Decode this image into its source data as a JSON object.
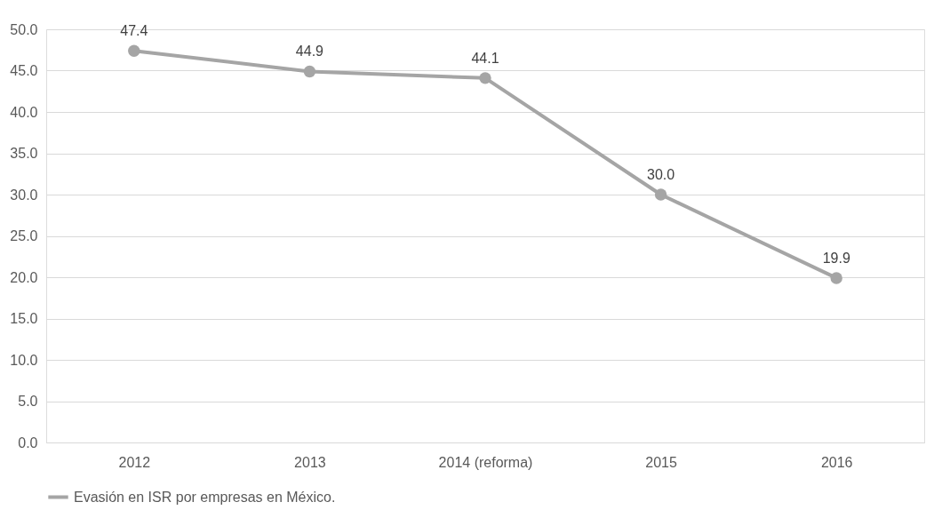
{
  "chart_data": {
    "type": "line",
    "categories": [
      "2012",
      "2013",
      "2014 (reforma)",
      "2015",
      "2016"
    ],
    "series": [
      {
        "name": "Evasión en ISR por empresas en México.",
        "color": "#a5a5a5",
        "values": [
          47.4,
          44.9,
          44.1,
          30.0,
          19.9
        ],
        "value_labels": [
          "47.4",
          "44.9",
          "44.1",
          "30.0",
          "19.9"
        ]
      }
    ],
    "ylim": [
      0,
      50
    ],
    "yticks": [
      {
        "value": 0,
        "label": "0.0"
      },
      {
        "value": 5,
        "label": "5.0"
      },
      {
        "value": 10,
        "label": "10.0"
      },
      {
        "value": 15,
        "label": "15.0"
      },
      {
        "value": 20,
        "label": "20.0"
      },
      {
        "value": 25,
        "label": "25.0"
      },
      {
        "value": 30,
        "label": "30.0"
      },
      {
        "value": 35,
        "label": "35.0"
      },
      {
        "value": 40,
        "label": "40.0"
      },
      {
        "value": 45,
        "label": "45.0"
      },
      {
        "value": 50,
        "label": "50.0"
      }
    ],
    "grid": "y",
    "legend": "bottom",
    "marker": "circle",
    "line_style": "solid"
  }
}
